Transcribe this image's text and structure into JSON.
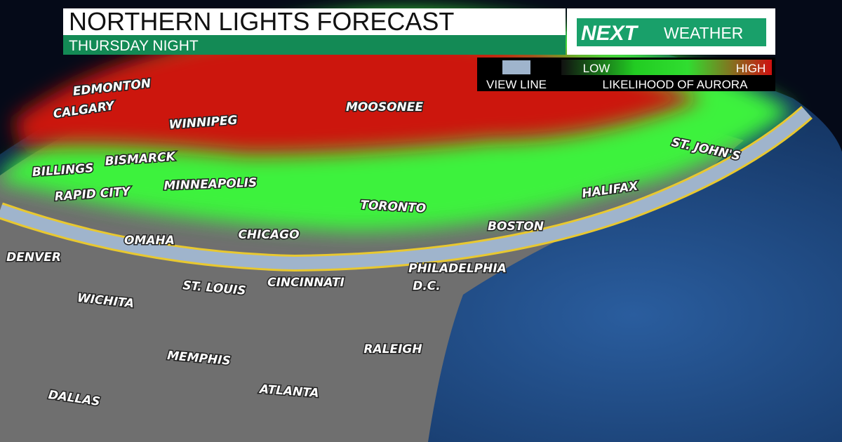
{
  "header": {
    "title": "NORTHERN LIGHTS FORECAST",
    "subtitle": "THURSDAY NIGHT"
  },
  "logo": {
    "brand": "NEXT",
    "product": "WEATHER"
  },
  "legend": {
    "view_line": "VIEW LINE",
    "low": "LOW",
    "high": "HIGH",
    "caption": "LIKELIHOOD OF AURORA"
  },
  "cities": [
    "EDMONTON",
    "CALGARY",
    "WINNIPEG",
    "MOOSONEE",
    "BILLINGS",
    "BISMARCK",
    "RAPID CITY",
    "MINNEAPOLIS",
    "TORONTO",
    "ST. JOHN'S",
    "HALIFAX",
    "CHICAGO",
    "OMAHA",
    "BOSTON",
    "DENVER",
    "PHILADELPHIA",
    "D.C.",
    "ST. LOUIS",
    "CINCINNATI",
    "WICHITA",
    "MEMPHIS",
    "RALEIGH",
    "ATLANTA",
    "DALLAS"
  ]
}
